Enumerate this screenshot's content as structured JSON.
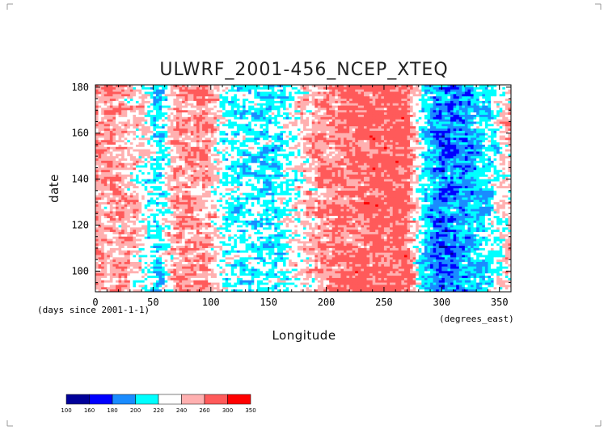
{
  "chart_data": {
    "type": "heatmap",
    "title": "ULWRF_2001-456_NCEP_XTEQ",
    "xlabel": "Longitude",
    "ylabel": "date",
    "x_unit": "(degrees_east)",
    "y_unit": "(days since 2001-1-1)",
    "xlim": [
      0,
      360
    ],
    "ylim": [
      91,
      181
    ],
    "x_ticks": [
      0,
      50,
      100,
      150,
      200,
      250,
      300,
      350
    ],
    "y_ticks": [
      100,
      120,
      140,
      160,
      180
    ],
    "colorbar": {
      "levels": [
        100,
        160,
        180,
        200,
        220,
        240,
        260,
        300,
        350
      ],
      "colors": [
        "#000099",
        "#0000ff",
        "#1a8cff",
        "#00ffff",
        "#ffffff",
        "#ffb0b0",
        "#ff5a5a",
        "#ff0000"
      ]
    },
    "longitude_profile": [
      {
        "lon": 0,
        "value": 255
      },
      {
        "lon": 20,
        "value": 250
      },
      {
        "lon": 40,
        "value": 235
      },
      {
        "lon": 55,
        "value": 205
      },
      {
        "lon": 70,
        "value": 255
      },
      {
        "lon": 95,
        "value": 255
      },
      {
        "lon": 110,
        "value": 225
      },
      {
        "lon": 130,
        "value": 215
      },
      {
        "lon": 160,
        "value": 215
      },
      {
        "lon": 185,
        "value": 245
      },
      {
        "lon": 210,
        "value": 265
      },
      {
        "lon": 240,
        "value": 270
      },
      {
        "lon": 270,
        "value": 270
      },
      {
        "lon": 285,
        "value": 205
      },
      {
        "lon": 300,
        "value": 185
      },
      {
        "lon": 320,
        "value": 195
      },
      {
        "lon": 345,
        "value": 220
      },
      {
        "lon": 360,
        "value": 245
      }
    ],
    "grid": false
  }
}
